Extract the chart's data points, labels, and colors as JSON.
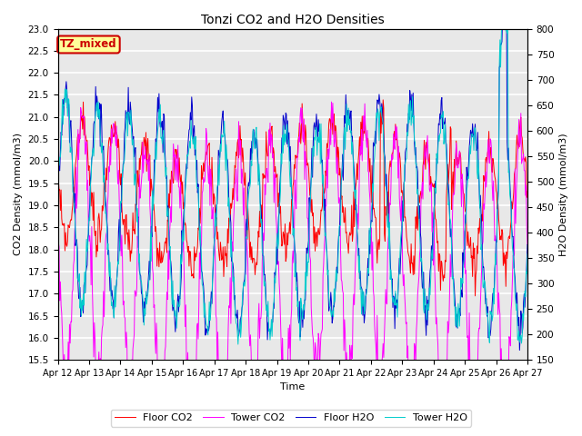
{
  "title": "Tonzi CO2 and H2O Densities",
  "xlabel": "Time",
  "ylabel_left": "CO2 Density (mmol/m3)",
  "ylabel_right": "H2O Density (mmol/m3)",
  "ylim_left": [
    15.5,
    23.0
  ],
  "ylim_right": [
    150,
    800
  ],
  "yticks_left": [
    15.5,
    16.0,
    16.5,
    17.0,
    17.5,
    18.0,
    18.5,
    19.0,
    19.5,
    20.0,
    20.5,
    21.0,
    21.5,
    22.0,
    22.5,
    23.0
  ],
  "yticks_right": [
    150,
    200,
    250,
    300,
    350,
    400,
    450,
    500,
    550,
    600,
    650,
    700,
    750,
    800
  ],
  "xtick_labels": [
    "Apr 12",
    "Apr 13",
    "Apr 14",
    "Apr 15",
    "Apr 16",
    "Apr 17",
    "Apr 18",
    "Apr 19",
    "Apr 20",
    "Apr 21",
    "Apr 22",
    "Apr 23",
    "Apr 24",
    "Apr 25",
    "Apr 26",
    "Apr 27"
  ],
  "colors": {
    "floor_co2": "#ff0000",
    "tower_co2": "#ff00ff",
    "floor_h2o": "#0000cc",
    "tower_h2o": "#00cccc"
  },
  "legend_labels": [
    "Floor CO2",
    "Tower CO2",
    "Floor H2O",
    "Tower H2O"
  ],
  "annotation_text": "TZ_mixed",
  "annotation_color": "#cc0000",
  "annotation_bg": "#ffff99",
  "background_color": "#e8e8e8",
  "grid_color": "#ffffff",
  "n_days": 15,
  "points_per_day": 48,
  "seed": 42
}
